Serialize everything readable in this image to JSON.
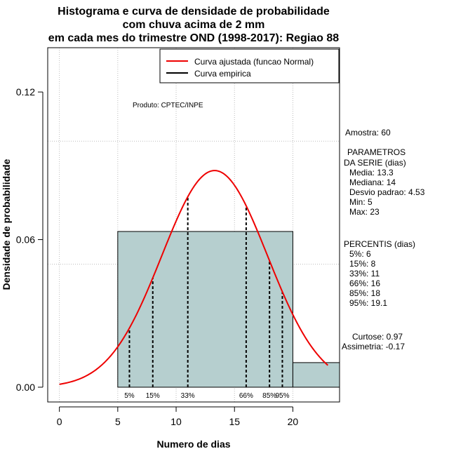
{
  "chart_data": {
    "type": "bar",
    "title_lines": [
      "Histograma e curva de densidade de probabilidade",
      "com chuva acima de 2 mm",
      "em cada mes do trimestre OND (1998-2017): Regiao 88"
    ],
    "xlabel": "Numero de dias",
    "ylabel": "Densidade de probabilidade",
    "xlim": [
      -1,
      24
    ],
    "ylim": [
      -0.006,
      0.138
    ],
    "x_ticks": [
      0,
      5,
      10,
      15,
      20
    ],
    "y_ticks": [
      0.0,
      0.06,
      0.12
    ],
    "y_tick_labels": [
      "0.00",
      "0.06",
      "0.12"
    ],
    "grid_x": [
      0,
      5,
      10,
      15,
      20
    ],
    "grid_y": [
      0.05,
      0.1
    ],
    "bins": [
      {
        "x0": 5,
        "x1": 20,
        "density": 0.0633
      },
      {
        "x0": 20,
        "x1": 24,
        "density": 0.01
      }
    ],
    "bin_color": "#b6cfcf",
    "curve_color": "#ee0000",
    "normal_fit": {
      "mean": 13.3,
      "sd": 4.53,
      "x_from": 0,
      "x_to": 23
    },
    "percentile_lines": [
      {
        "label": "5%",
        "x": 6
      },
      {
        "label": "15%",
        "x": 8
      },
      {
        "label": "33%",
        "x": 11
      },
      {
        "label": "66%",
        "x": 16
      },
      {
        "label": "85%",
        "x": 18
      },
      {
        "label": "95%",
        "x": 19.1
      }
    ],
    "legend": [
      {
        "label": "Curva ajustada (funcao Normal)",
        "color": "#ee0000"
      },
      {
        "label": "Curva empirica",
        "color": "#000000"
      }
    ],
    "legend_position": "top-right",
    "product_note": "Produto: CPTEC/INPE"
  },
  "side_panel": {
    "sample": "Amostra: 60",
    "params_title_1": "PARAMETROS",
    "params_title_2": "DA SERIE (dias)",
    "params": [
      "Media: 13.3",
      "Mediana: 14",
      "Desvio padrao: 4.53",
      "Min: 5",
      "Max: 23"
    ],
    "percentis_title": "PERCENTIS (dias)",
    "percentis": [
      "5%: 6",
      "15%: 8",
      "33%: 11",
      "66%: 16",
      "85%: 18",
      "95%: 19.1"
    ],
    "curtose": "Curtose: 0.97",
    "assimetria": "Assimetria: -0.17"
  }
}
